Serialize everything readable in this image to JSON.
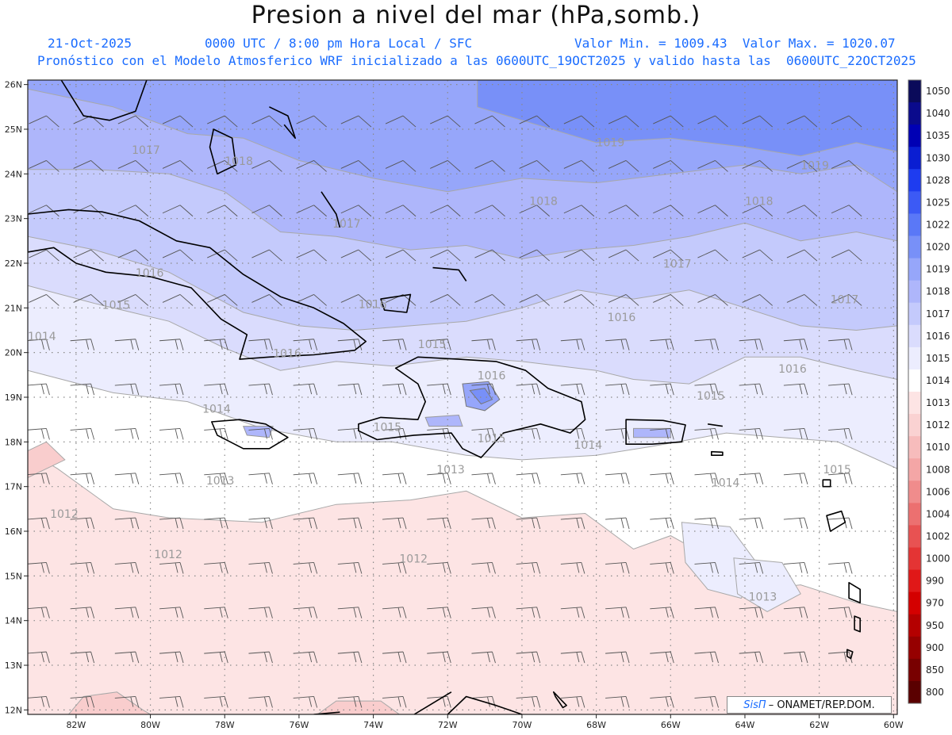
{
  "title": "Presion a nivel del mar (hPa,somb.)",
  "date": "21-Oct-2025",
  "time_info": "0000 UTC / 8:00 pm Hora Local / SFC",
  "min_max": "Valor Min. = 1009.43  Valor Max. = 1020.07",
  "model_info": "Pronóstico con el Modelo Atmosferico WRF inicializado a las 0600UTC_19OCT2025 y valido hasta las  0600UTC_22OCT2025",
  "credit": {
    "brand": "SisΠ",
    "text": "– ONAMET/REP.DOM."
  },
  "lat_labels": [
    "26N",
    "25N",
    "24N",
    "23N",
    "22N",
    "21N",
    "20N",
    "19N",
    "18N",
    "17N",
    "16N",
    "15N",
    "14N",
    "13N",
    "12N"
  ],
  "lon_labels": [
    "82W",
    "80W",
    "78W",
    "76W",
    "74W",
    "72W",
    "70W",
    "68W",
    "66W",
    "64W",
    "62W",
    "60W"
  ],
  "colorbar": {
    "labels": [
      "1050",
      "1040",
      "1035",
      "1030",
      "1028",
      "1025",
      "1022",
      "1020",
      "1019",
      "1018",
      "1017",
      "1016",
      "1015",
      "1014",
      "1013",
      "1012",
      "1010",
      "1008",
      "1006",
      "1004",
      "1002",
      "1000",
      "990",
      "970",
      "950",
      "900",
      "850",
      "800"
    ],
    "colors": [
      "#0a0a5a",
      "#0a0a8c",
      "#0000b4",
      "#0a1ed2",
      "#1e3cf0",
      "#3c5af5",
      "#5a78f7",
      "#7890f8",
      "#96a6fa",
      "#aeb6fb",
      "#c4cafc",
      "#dadcfd",
      "#ecedfe",
      "#ffffff",
      "#fde4e4",
      "#fad2d2",
      "#f7bcbc",
      "#f4a6a6",
      "#f08c8c",
      "#ec7070",
      "#e85252",
      "#e43434",
      "#e01818",
      "#d40000",
      "#b40000",
      "#960000",
      "#780000",
      "#5a0000"
    ]
  },
  "contour_labels": [
    {
      "text": "1019",
      "lon": -68.0,
      "lat": 24.62
    },
    {
      "text": "1019",
      "lon": -62.5,
      "lat": 24.1
    },
    {
      "text": "1018",
      "lon": -69.8,
      "lat": 23.3
    },
    {
      "text": "1018",
      "lon": -64.0,
      "lat": 23.3
    },
    {
      "text": "1018",
      "lon": -78.0,
      "lat": 24.2
    },
    {
      "text": "1017",
      "lon": -80.5,
      "lat": 24.45
    },
    {
      "text": "1017",
      "lon": -75.1,
      "lat": 22.8
    },
    {
      "text": "1017",
      "lon": -66.2,
      "lat": 21.9
    },
    {
      "text": "1017",
      "lon": -61.7,
      "lat": 21.1
    },
    {
      "text": "1016",
      "lon": -80.4,
      "lat": 21.7
    },
    {
      "text": "1016",
      "lon": -74.4,
      "lat": 21.0
    },
    {
      "text": "1016",
      "lon": -67.7,
      "lat": 20.7
    },
    {
      "text": "1016",
      "lon": -76.7,
      "lat": 19.9
    },
    {
      "text": "1016",
      "lon": -71.2,
      "lat": 19.4
    },
    {
      "text": "1016",
      "lon": -63.1,
      "lat": 19.55
    },
    {
      "text": "1015",
      "lon": -81.3,
      "lat": 20.98
    },
    {
      "text": "1015",
      "lon": -72.8,
      "lat": 20.1
    },
    {
      "text": "1015",
      "lon": -65.3,
      "lat": 18.95
    },
    {
      "text": "1015",
      "lon": -71.2,
      "lat": 18.0
    },
    {
      "text": "1015",
      "lon": -74.0,
      "lat": 18.25
    },
    {
      "text": "1015",
      "lon": -61.9,
      "lat": 17.3
    },
    {
      "text": "1014",
      "lon": -83.3,
      "lat": 20.28
    },
    {
      "text": "1014",
      "lon": -78.6,
      "lat": 18.65
    },
    {
      "text": "1014",
      "lon": -68.6,
      "lat": 17.85
    },
    {
      "text": "1014",
      "lon": -64.9,
      "lat": 17.0
    },
    {
      "text": "1013",
      "lon": -78.5,
      "lat": 17.05
    },
    {
      "text": "1013",
      "lon": -72.3,
      "lat": 17.3
    },
    {
      "text": "1013",
      "lon": -63.9,
      "lat": 14.45
    },
    {
      "text": "1012",
      "lon": -82.7,
      "lat": 16.3
    },
    {
      "text": "1012",
      "lon": -79.9,
      "lat": 15.4
    },
    {
      "text": "1012",
      "lon": -73.3,
      "lat": 15.3
    }
  ]
}
